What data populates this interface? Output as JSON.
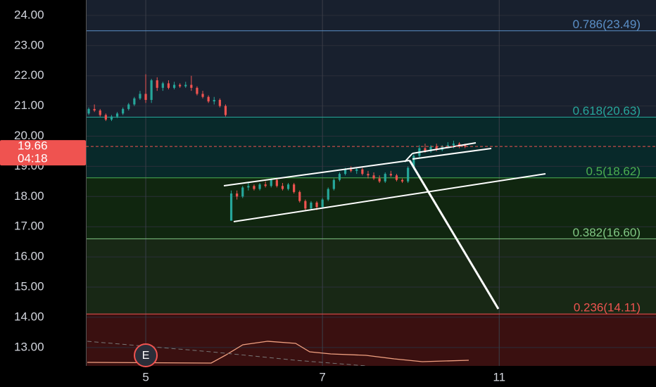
{
  "chart_data": {
    "type": "candlestick",
    "xlim": [
      0,
      200
    ],
    "ylim": [
      12.39,
      24.51
    ],
    "xticks": [
      {
        "value": 21,
        "label": "5"
      },
      {
        "value": 83,
        "label": "7"
      },
      {
        "value": 145,
        "label": "11"
      }
    ],
    "yticks": [
      {
        "value": 13,
        "label": "13.00"
      },
      {
        "value": 14,
        "label": "14.00"
      },
      {
        "value": 15,
        "label": "15.00"
      },
      {
        "value": 16,
        "label": "16.00"
      },
      {
        "value": 17,
        "label": "17.00"
      },
      {
        "value": 18,
        "label": "18.00"
      },
      {
        "value": 19,
        "label": "19.00"
      },
      {
        "value": 20,
        "label": "20.00"
      },
      {
        "value": 21,
        "label": "21.00"
      },
      {
        "value": 22,
        "label": "22.00"
      },
      {
        "value": 23,
        "label": "23.00"
      },
      {
        "value": 24,
        "label": "24.00"
      }
    ],
    "grid": true,
    "up_color": "#26a69a",
    "down_color": "#ef5350",
    "levels": [
      {
        "value": 23.49,
        "label": "0.786(23.49)",
        "color": "#5b8fc7",
        "fill": "#18202e"
      },
      {
        "value": 20.63,
        "label": "0.618(20.63)",
        "color": "#26a69a",
        "fill": "#18202e"
      },
      {
        "value": 18.62,
        "label": "0.5(18.62)",
        "color": "#4caf50",
        "fill": "#08292a"
      },
      {
        "value": 16.6,
        "label": "0.382(16.60)",
        "color": "#81c784",
        "fill": "#10260f"
      },
      {
        "value": 14.11,
        "label": "0.236(14.11)",
        "color": "#ef5350",
        "fill": "#182815"
      }
    ],
    "bottom_fill": "#3a1010",
    "top_fill": "#18202e",
    "last_price": 19.66,
    "countdown": "04:18",
    "event_marker": "E",
    "candles": {
      "x": [
        1,
        3,
        5,
        7,
        9,
        11,
        13,
        15,
        17,
        19,
        21,
        23,
        25,
        27,
        29,
        31,
        33,
        35,
        37,
        39,
        41,
        43,
        45,
        47,
        49,
        51,
        53,
        55,
        57,
        59,
        61,
        63,
        65,
        67,
        69,
        71,
        73,
        75,
        77,
        79,
        81,
        83,
        85,
        87,
        89,
        91,
        93,
        95,
        97,
        99,
        101,
        103,
        105,
        107,
        109,
        111,
        113,
        115,
        117,
        119,
        121,
        123,
        125,
        127,
        129,
        131,
        133
      ],
      "open": [
        20.75,
        20.9,
        20.85,
        20.7,
        20.55,
        20.65,
        20.75,
        20.9,
        21.05,
        21.25,
        21.4,
        21.2,
        21.85,
        21.6,
        21.75,
        21.6,
        21.7,
        21.65,
        21.7,
        21.6,
        21.4,
        21.3,
        21.15,
        21.2,
        21.0,
        17.2,
        18.1,
        18.0,
        18.3,
        18.35,
        18.25,
        18.4,
        18.35,
        18.55,
        18.35,
        18.25,
        18.4,
        18.15,
        17.85,
        17.6,
        17.8,
        17.65,
        17.9,
        18.25,
        18.55,
        18.75,
        18.9,
        18.85,
        18.9,
        18.75,
        18.7,
        18.6,
        18.5,
        18.75,
        18.7,
        18.55,
        18.5,
        18.95,
        19.35,
        19.6,
        19.5,
        19.65,
        19.55,
        19.65,
        19.7,
        19.75,
        19.7
      ],
      "high": [
        20.95,
        21.05,
        20.9,
        20.75,
        20.7,
        20.8,
        20.95,
        21.1,
        21.3,
        21.5,
        22.05,
        21.9,
        21.95,
        21.8,
        21.85,
        21.8,
        21.75,
        21.8,
        22.0,
        21.65,
        21.5,
        21.35,
        21.3,
        21.25,
        21.05,
        18.2,
        18.2,
        18.35,
        18.45,
        18.4,
        18.45,
        18.5,
        18.6,
        18.6,
        18.45,
        18.45,
        18.45,
        18.2,
        17.9,
        17.85,
        17.85,
        17.95,
        18.3,
        18.6,
        18.8,
        18.95,
        19.0,
        18.95,
        18.95,
        18.85,
        18.8,
        18.7,
        18.8,
        18.85,
        18.75,
        18.6,
        19.0,
        19.4,
        19.7,
        19.75,
        19.7,
        19.75,
        19.7,
        19.8,
        19.85,
        19.8,
        19.75
      ],
      "low": [
        20.7,
        20.8,
        20.65,
        20.5,
        20.5,
        20.6,
        20.7,
        20.85,
        21.0,
        21.2,
        21.1,
        21.1,
        21.5,
        21.5,
        21.55,
        21.55,
        21.6,
        21.6,
        21.5,
        21.35,
        21.25,
        21.1,
        21.05,
        20.95,
        20.65,
        17.2,
        17.9,
        17.95,
        18.2,
        18.2,
        18.2,
        18.3,
        18.3,
        18.3,
        18.2,
        18.2,
        18.1,
        17.8,
        17.55,
        17.55,
        17.55,
        17.6,
        17.85,
        18.2,
        18.5,
        18.7,
        18.8,
        18.75,
        18.7,
        18.6,
        18.55,
        18.45,
        18.45,
        18.65,
        18.5,
        18.45,
        18.45,
        18.9,
        19.3,
        19.45,
        19.45,
        19.5,
        19.5,
        19.6,
        19.6,
        19.6,
        19.6
      ],
      "close": [
        20.9,
        20.85,
        20.7,
        20.55,
        20.65,
        20.75,
        20.9,
        21.05,
        21.25,
        21.4,
        21.2,
        21.85,
        21.6,
        21.75,
        21.6,
        21.7,
        21.65,
        21.7,
        21.6,
        21.4,
        21.3,
        21.15,
        21.2,
        21.0,
        20.7,
        18.1,
        18.0,
        18.3,
        18.35,
        18.25,
        18.4,
        18.35,
        18.55,
        18.35,
        18.25,
        18.4,
        18.15,
        17.85,
        17.6,
        17.8,
        17.65,
        17.9,
        18.25,
        18.55,
        18.75,
        18.9,
        18.85,
        18.9,
        18.75,
        18.7,
        18.6,
        18.5,
        18.75,
        18.7,
        18.55,
        18.5,
        18.95,
        19.35,
        19.6,
        19.5,
        19.65,
        19.55,
        19.65,
        19.7,
        19.75,
        19.7,
        19.66
      ]
    }
  }
}
